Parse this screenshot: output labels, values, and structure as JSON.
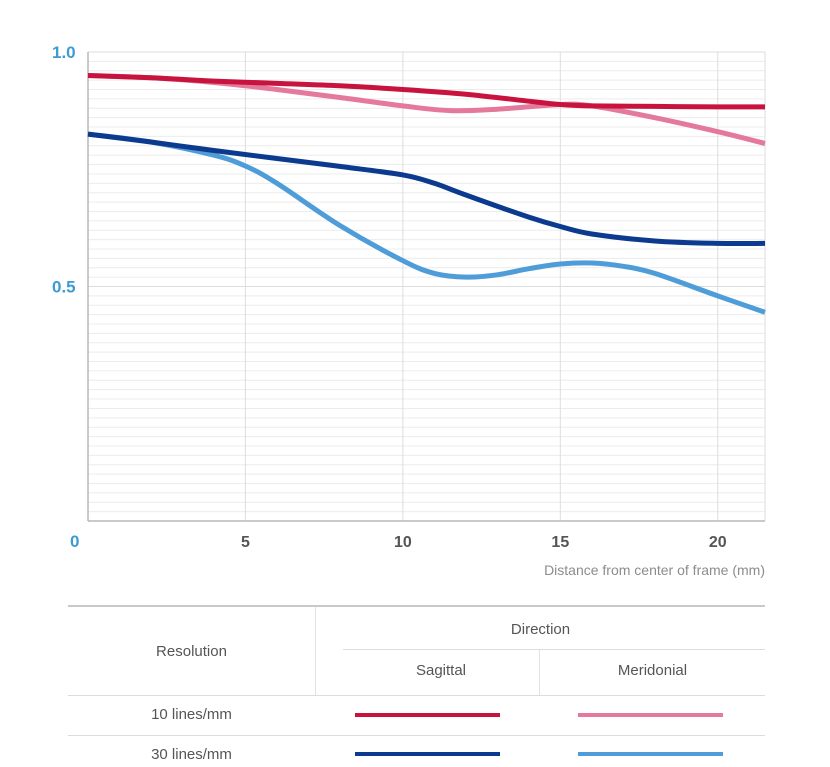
{
  "chart_data": {
    "type": "line",
    "xlabel": "Distance from center of frame (mm)",
    "ylabel": "",
    "xlim": [
      0,
      21.5
    ],
    "ylim": [
      0,
      1.0
    ],
    "x_ticks": [
      0,
      5,
      10,
      15,
      20
    ],
    "y_ticks": [
      0,
      0.5,
      1.0
    ],
    "x_tick_labels": [
      "0",
      "5",
      "10",
      "15",
      "20"
    ],
    "y_tick_labels": [
      "0",
      "0.5",
      "1.0"
    ],
    "grid": true,
    "legend_position": "bottom-table",
    "series": [
      {
        "resolution": "10 lines/mm",
        "direction": "Sagittal",
        "color": "#c8133f",
        "x": [
          0,
          2,
          4,
          6,
          8,
          10,
          12,
          14,
          15,
          16,
          18,
          20,
          21.5
        ],
        "y": [
          0.95,
          0.945,
          0.938,
          0.933,
          0.928,
          0.92,
          0.91,
          0.895,
          0.888,
          0.885,
          0.884,
          0.883,
          0.883
        ]
      },
      {
        "resolution": "10 lines/mm",
        "direction": "Meridonial",
        "color": "#e4799b",
        "x": [
          0,
          2,
          4,
          6,
          8,
          10,
          11.5,
          13,
          15,
          16,
          18,
          20,
          21.5
        ],
        "y": [
          0.95,
          0.945,
          0.935,
          0.92,
          0.903,
          0.885,
          0.875,
          0.878,
          0.888,
          0.885,
          0.86,
          0.83,
          0.805
        ]
      },
      {
        "resolution": "30 lines/mm",
        "direction": "Sagittal",
        "color": "#0b3a8f",
        "x": [
          0,
          2,
          4,
          6,
          8,
          10,
          11,
          12,
          14,
          15,
          16,
          18,
          20,
          21.5
        ],
        "y": [
          0.825,
          0.808,
          0.79,
          0.773,
          0.756,
          0.738,
          0.72,
          0.695,
          0.648,
          0.628,
          0.612,
          0.597,
          0.592,
          0.592
        ]
      },
      {
        "resolution": "30 lines/mm",
        "direction": "Meridonial",
        "color": "#4f9dd8",
        "x": [
          0,
          2,
          4,
          5,
          6,
          8,
          10,
          11,
          12,
          13,
          14,
          15,
          16,
          17,
          18,
          20,
          21.5
        ],
        "y": [
          0.825,
          0.808,
          0.78,
          0.757,
          0.72,
          0.63,
          0.555,
          0.528,
          0.52,
          0.525,
          0.538,
          0.548,
          0.55,
          0.543,
          0.528,
          0.48,
          0.445
        ]
      }
    ]
  },
  "legend": {
    "resolution_header": "Resolution",
    "direction_header": "Direction",
    "sagittal_header": "Sagittal",
    "meridonial_header": "Meridonial",
    "rows": [
      {
        "label": "10 lines/mm",
        "sagittal_color": "#c8133f",
        "meridonial_color": "#e4799b"
      },
      {
        "label": "30 lines/mm",
        "sagittal_color": "#0b3a8f",
        "meridonial_color": "#4f9dd8"
      }
    ]
  }
}
